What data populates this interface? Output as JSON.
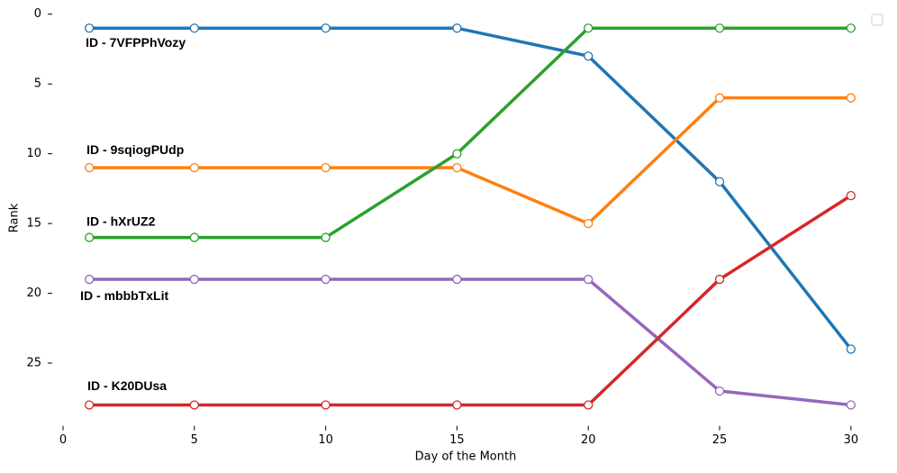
{
  "chart_data": {
    "type": "line",
    "xlabel": "Day of the Month",
    "ylabel": "Rank",
    "x": [
      1,
      5,
      10,
      15,
      20,
      25,
      30
    ],
    "xlim": [
      0,
      31
    ],
    "xticks": [
      0,
      5,
      10,
      15,
      20,
      25,
      30
    ],
    "ylim": [
      29.5,
      -0.5
    ],
    "yticks": [
      0,
      5,
      10,
      15,
      20,
      25
    ],
    "series": [
      {
        "name": "ID - 7VFPPhVozy",
        "color": "#1f77b4",
        "values": [
          1,
          1,
          1,
          1,
          3,
          12,
          24
        ]
      },
      {
        "name": "ID - 9sqiogPUdp",
        "color": "#ff7f0e",
        "values": [
          11,
          11,
          11,
          11,
          15,
          6,
          6
        ]
      },
      {
        "name": "ID - hXrUZ2",
        "color": "#2ca02c",
        "values": [
          16,
          16,
          16,
          10,
          1,
          1,
          1
        ]
      },
      {
        "name": "ID - mbbbTxLit",
        "color": "#9467bd",
        "values": [
          19,
          19,
          19,
          19,
          19,
          27,
          28
        ]
      },
      {
        "name": "ID - K20DUsa",
        "color": "#d62728",
        "values": [
          28,
          28,
          28,
          28,
          28,
          19,
          13
        ]
      }
    ]
  }
}
